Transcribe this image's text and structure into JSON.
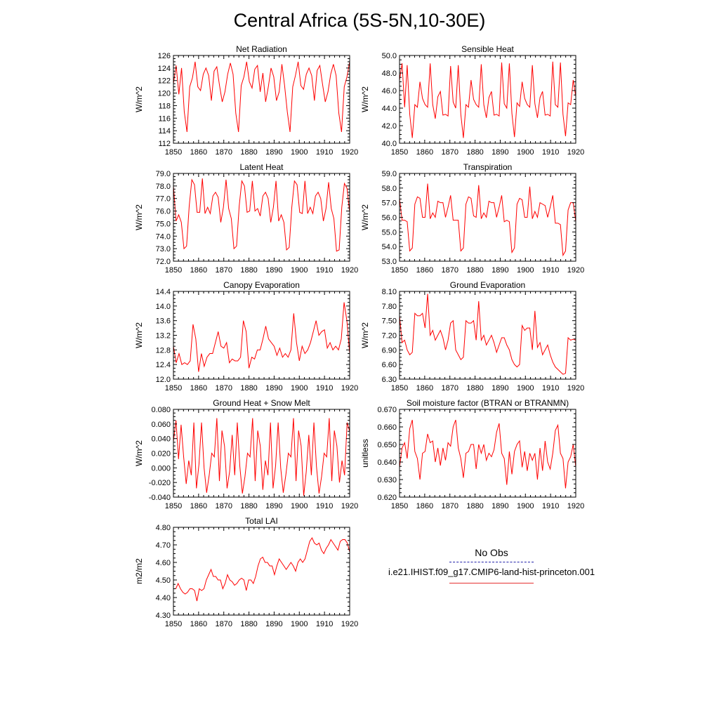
{
  "title": "Central Africa (5S-5N,10-30E)",
  "legend": {
    "obs_label": "No Obs",
    "obs_color": "#2222aa",
    "run_label": "i.e21.IHIST.f09_g17.CMIP6-land-hist-princeton.001",
    "run_color": "#ff0000"
  },
  "chart_data": [
    {
      "type": "line",
      "title": "Net Radiation",
      "ylabel": "W/m^2",
      "xlim": [
        1850,
        1920
      ],
      "ylim": [
        112,
        126
      ],
      "xticks": [
        "1850",
        "1860",
        "1870",
        "1880",
        "1890",
        "1900",
        "1910",
        "1920"
      ],
      "yticks": [
        "112",
        "114",
        "116",
        "118",
        "120",
        "122",
        "124",
        "126"
      ],
      "x_start": 1850,
      "values": [
        121.5,
        124.4,
        119.8,
        124.0,
        117.0,
        113.8,
        121.0,
        122.4,
        125.0,
        121.0,
        120.4,
        123.0,
        124.0,
        122.8,
        118.8,
        123.5,
        124.2,
        121.2,
        118.6,
        120.2,
        123.0,
        124.8,
        123.0,
        116.8,
        113.8,
        121.2,
        122.6,
        125.0,
        121.8,
        120.8,
        123.8,
        124.4,
        120.2,
        123.2,
        118.6,
        121.0,
        124.0,
        122.6,
        118.8,
        120.2,
        124.6,
        121.2,
        117.0,
        113.8,
        121.0,
        122.8,
        125.0,
        121.2,
        120.6,
        123.0,
        124.0,
        122.8,
        118.8,
        123.6,
        124.4,
        121.4,
        118.6,
        120.2,
        123.0,
        124.6,
        122.8,
        116.8,
        113.8,
        121.0,
        122.6,
        125.0
      ]
    },
    {
      "type": "line",
      "title": "Sensible Heat",
      "ylabel": "W/m^2",
      "xlim": [
        1850,
        1920
      ],
      "ylim": [
        40.0,
        50.0
      ],
      "xticks": [
        "1850",
        "1860",
        "1870",
        "1880",
        "1890",
        "1900",
        "1910",
        "1920"
      ],
      "yticks": [
        "40.0",
        "42.0",
        "44.0",
        "46.0",
        "48.0",
        "50.0"
      ],
      "x_start": 1850,
      "values": [
        47.2,
        49.1,
        44.1,
        48.9,
        43.3,
        40.6,
        44.4,
        44.1,
        47.0,
        45.1,
        44.4,
        44.1,
        49.1,
        44.4,
        42.8,
        45.3,
        45.9,
        43.2,
        43.3,
        43.1,
        48.8,
        44.7,
        44.0,
        48.9,
        43.3,
        40.6,
        44.4,
        44.1,
        47.2,
        45.0,
        44.4,
        44.1,
        49.0,
        44.4,
        42.9,
        45.2,
        45.9,
        43.2,
        43.3,
        43.1,
        49.2,
        44.5,
        44.0,
        49.1,
        43.4,
        40.7,
        44.6,
        44.2,
        47.0,
        45.1,
        44.4,
        44.1,
        48.9,
        44.5,
        42.9,
        45.2,
        45.9,
        43.2,
        43.3,
        43.1,
        49.3,
        44.4,
        44.1,
        49.2,
        43.3,
        40.8,
        44.6,
        44.4,
        47.2,
        45.3
      ]
    },
    {
      "type": "line",
      "title": "Latent Heat",
      "ylabel": "W/m^2",
      "xlim": [
        1850,
        1920
      ],
      "ylim": [
        72.0,
        79.0
      ],
      "xticks": [
        "1850",
        "1860",
        "1870",
        "1880",
        "1890",
        "1900",
        "1910",
        "1920"
      ],
      "yticks": [
        "72.0",
        "73.0",
        "74.0",
        "75.0",
        "76.0",
        "77.0",
        "78.0",
        "79.0"
      ],
      "x_start": 1850,
      "values": [
        78.0,
        75.2,
        75.7,
        75.1,
        73.0,
        73.2,
        76.4,
        78.5,
        78.1,
        75.9,
        75.9,
        78.6,
        75.8,
        76.3,
        75.8,
        77.2,
        77.5,
        77.1,
        75.1,
        76.3,
        78.5,
        76.2,
        75.4,
        73.0,
        73.2,
        76.4,
        78.4,
        78.0,
        75.9,
        76.0,
        78.4,
        76.0,
        76.2,
        75.6,
        77.2,
        77.5,
        77.0,
        75.1,
        76.3,
        78.4,
        75.2,
        75.7,
        75.1,
        72.9,
        73.1,
        76.3,
        78.4,
        78.1,
        75.9,
        75.8,
        78.4,
        75.8,
        76.3,
        75.8,
        77.2,
        77.5,
        77.0,
        75.2,
        76.2,
        78.3,
        76.2,
        75.4,
        72.8,
        72.9,
        76.3,
        78.2,
        77.8,
        75.9
      ]
    },
    {
      "type": "line",
      "title": "Transpiration",
      "ylabel": "W/m^2",
      "xlim": [
        1850,
        1920
      ],
      "ylim": [
        53.0,
        59.0
      ],
      "xticks": [
        "1850",
        "1860",
        "1870",
        "1880",
        "1890",
        "1900",
        "1910",
        "1920"
      ],
      "yticks": [
        "53.0",
        "54.0",
        "55.0",
        "56.0",
        "57.0",
        "58.0",
        "59.0"
      ],
      "x_start": 1850,
      "values": [
        57.3,
        55.8,
        55.8,
        55.7,
        53.7,
        53.9,
        56.9,
        57.4,
        57.3,
        56.0,
        56.0,
        58.3,
        55.9,
        56.3,
        56.0,
        57.1,
        57.0,
        57.0,
        56.0,
        56.7,
        57.5,
        55.8,
        55.8,
        55.8,
        53.7,
        53.9,
        56.9,
        57.4,
        57.3,
        56.1,
        56.0,
        58.2,
        55.9,
        56.3,
        56.0,
        57.1,
        57.0,
        57.0,
        56.0,
        56.7,
        57.5,
        55.7,
        55.8,
        55.7,
        53.6,
        53.9,
        56.9,
        57.3,
        57.2,
        56.0,
        56.0,
        58.1,
        55.9,
        56.4,
        56.0,
        57.0,
        56.9,
        56.8,
        56.0,
        56.7,
        57.5,
        55.6,
        55.6,
        55.5,
        53.4,
        53.7,
        56.5,
        57.0,
        57.0,
        55.7
      ]
    },
    {
      "type": "line",
      "title": "Canopy Evaporation",
      "ylabel": "W/m^2",
      "xlim": [
        1850,
        1920
      ],
      "ylim": [
        12.0,
        14.4
      ],
      "xticks": [
        "1850",
        "1860",
        "1870",
        "1880",
        "1890",
        "1900",
        "1910",
        "1920"
      ],
      "yticks": [
        "12.0",
        "12.4",
        "12.8",
        "13.2",
        "13.6",
        "14.0",
        "14.4"
      ],
      "x_start": 1850,
      "values": [
        12.9,
        12.45,
        12.7,
        12.4,
        12.45,
        12.4,
        12.5,
        13.5,
        13.1,
        12.2,
        12.7,
        12.35,
        12.6,
        12.7,
        12.7,
        13.0,
        13.3,
        12.9,
        12.85,
        13.0,
        12.45,
        12.55,
        12.5,
        12.5,
        12.6,
        13.6,
        13.3,
        12.3,
        12.6,
        12.55,
        12.8,
        12.8,
        13.1,
        13.45,
        13.1,
        13.0,
        12.9,
        12.65,
        12.85,
        12.6,
        12.7,
        12.6,
        12.8,
        13.8,
        13.0,
        12.5,
        12.9,
        12.7,
        12.8,
        13.0,
        13.3,
        13.6,
        13.2,
        13.3,
        13.35,
        12.85,
        13.0,
        12.8,
        12.9,
        12.8,
        13.1,
        14.1,
        13.6,
        12.7
      ]
    },
    {
      "type": "line",
      "title": "Ground Evaporation",
      "ylabel": "W/m^2",
      "xlim": [
        1850,
        1920
      ],
      "ylim": [
        6.3,
        8.1
      ],
      "xticks": [
        "1850",
        "1860",
        "1870",
        "1880",
        "1890",
        "1900",
        "1910",
        "1920"
      ],
      "yticks": [
        "6.30",
        "6.60",
        "6.90",
        "7.20",
        "7.50",
        "7.80",
        "8.10"
      ],
      "x_start": 1850,
      "values": [
        7.6,
        7.05,
        7.1,
        6.9,
        6.8,
        6.85,
        7.65,
        7.6,
        7.6,
        7.65,
        7.35,
        8.05,
        7.2,
        7.3,
        7.1,
        7.2,
        7.3,
        7.15,
        6.9,
        7.1,
        7.45,
        7.5,
        6.9,
        6.8,
        6.7,
        6.75,
        7.5,
        7.45,
        7.45,
        7.5,
        7.1,
        7.9,
        7.1,
        7.2,
        7.0,
        7.1,
        7.2,
        7.05,
        6.85,
        7.0,
        7.15,
        7.15,
        7.0,
        6.9,
        6.7,
        6.6,
        6.55,
        6.6,
        7.4,
        7.3,
        7.35,
        7.35,
        6.9,
        7.7,
        6.95,
        7.05,
        6.8,
        6.9,
        7.0,
        6.8,
        6.65,
        6.55,
        6.5,
        6.45,
        6.4,
        6.42,
        7.15,
        7.1,
        7.12,
        7.1
      ]
    },
    {
      "type": "line",
      "title": "Ground Heat + Snow Melt",
      "ylabel": "W/m^2",
      "xlim": [
        1850,
        1920
      ],
      "ylim": [
        -0.04,
        0.08
      ],
      "xticks": [
        "1850",
        "1860",
        "1870",
        "1880",
        "1890",
        "1900",
        "1910",
        "1920"
      ],
      "yticks": [
        "-0.040",
        "-0.020",
        "0.000",
        "0.020",
        "0.040",
        "0.060",
        "0.080"
      ],
      "x_start": 1850,
      "values": [
        0.036,
        0.065,
        0.012,
        0.059,
        0.015,
        -0.022,
        0.01,
        -0.01,
        0.062,
        -0.028,
        0.005,
        0.062,
        0.0,
        -0.034,
        -0.01,
        0.02,
        0.015,
        0.068,
        -0.018,
        0.051,
        0.03,
        -0.028,
        -0.005,
        0.045,
        -0.01,
        0.062,
        0.002,
        -0.035,
        -0.012,
        0.02,
        0.015,
        0.068,
        -0.018,
        0.051,
        0.03,
        -0.03,
        0.01,
        -0.01,
        0.062,
        -0.028,
        0.003,
        0.062,
        0.0,
        -0.034,
        -0.01,
        0.02,
        0.015,
        0.068,
        -0.018,
        0.051,
        0.03,
        -0.038,
        -0.005,
        0.045,
        -0.01,
        0.062,
        0.002,
        -0.035,
        -0.012,
        0.02,
        0.015,
        0.068,
        -0.018,
        0.051,
        0.03,
        -0.02,
        0.01,
        -0.01,
        0.062,
        0.05
      ]
    },
    {
      "type": "line",
      "title": "Soil moisture factor (BTRAN or BTRANMN)",
      "ylabel": "unitless",
      "xlim": [
        1850,
        1920
      ],
      "ylim": [
        0.62,
        0.67
      ],
      "xticks": [
        "1850",
        "1860",
        "1870",
        "1880",
        "1890",
        "1900",
        "1910",
        "1920"
      ],
      "yticks": [
        "0.620",
        "0.630",
        "0.640",
        "0.650",
        "0.660",
        "0.670"
      ],
      "x_start": 1850,
      "values": [
        0.637,
        0.648,
        0.651,
        0.642,
        0.659,
        0.664,
        0.646,
        0.642,
        0.63,
        0.645,
        0.646,
        0.656,
        0.651,
        0.652,
        0.64,
        0.648,
        0.638,
        0.648,
        0.641,
        0.651,
        0.649,
        0.66,
        0.664,
        0.648,
        0.642,
        0.631,
        0.645,
        0.646,
        0.65,
        0.65,
        0.636,
        0.65,
        0.645,
        0.65,
        0.641,
        0.645,
        0.643,
        0.647,
        0.657,
        0.662,
        0.645,
        0.642,
        0.627,
        0.646,
        0.633,
        0.646,
        0.65,
        0.652,
        0.637,
        0.646,
        0.635,
        0.645,
        0.641,
        0.645,
        0.63,
        0.648,
        0.635,
        0.652,
        0.64,
        0.636,
        0.645,
        0.658,
        0.661,
        0.645,
        0.642,
        0.625,
        0.64,
        0.643,
        0.65,
        0.637
      ]
    },
    {
      "type": "line",
      "title": "Total LAI",
      "ylabel": "m2/m2",
      "xlim": [
        1850,
        1920
      ],
      "ylim": [
        4.3,
        4.8
      ],
      "xticks": [
        "1850",
        "1860",
        "1870",
        "1880",
        "1890",
        "1900",
        "1910",
        "1920"
      ],
      "yticks": [
        "4.30",
        "4.40",
        "4.50",
        "4.60",
        "4.70",
        "4.80"
      ],
      "x_start": 1850,
      "values": [
        4.45,
        4.45,
        4.48,
        4.45,
        4.43,
        4.42,
        4.43,
        4.45,
        4.45,
        4.44,
        4.38,
        4.45,
        4.44,
        4.45,
        4.5,
        4.53,
        4.56,
        4.52,
        4.52,
        4.5,
        4.5,
        4.45,
        4.48,
        4.53,
        4.5,
        4.49,
        4.47,
        4.48,
        4.5,
        4.51,
        4.5,
        4.44,
        4.5,
        4.5,
        4.48,
        4.52,
        4.58,
        4.62,
        4.63,
        4.6,
        4.6,
        4.58,
        4.58,
        4.53,
        4.58,
        4.62,
        4.6,
        4.58,
        4.56,
        4.58,
        4.6,
        4.58,
        4.55,
        4.6,
        4.62,
        4.6,
        4.62,
        4.67,
        4.72,
        4.74,
        4.71,
        4.7,
        4.71,
        4.67,
        4.65,
        4.68,
        4.7,
        4.73,
        4.71,
        4.69,
        4.67,
        4.72,
        4.73,
        4.73,
        4.71,
        4.66
      ]
    }
  ]
}
